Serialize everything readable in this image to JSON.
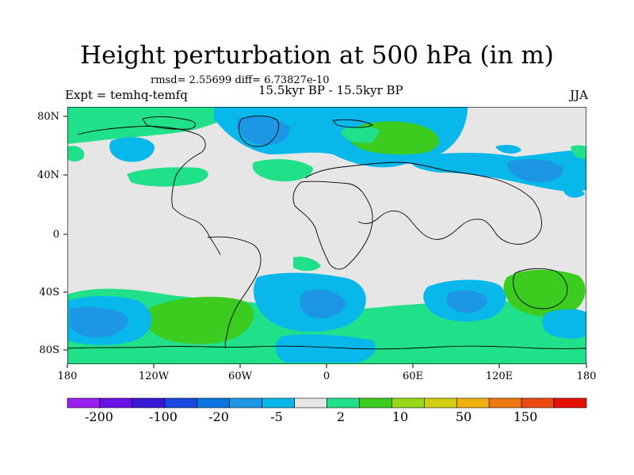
{
  "title": "Height perturbation at 500 hPa (in m)",
  "stats_line": "rmsd= 2.55699 diff= 6.73827e-10",
  "experiment_label": "Expt = temhq-temfq",
  "period_label": "15.5kyr BP - 15.5kyr BP",
  "season_label": "JJA",
  "lat_ticks": [
    "80N",
    "40N",
    "0",
    "40S",
    "80S"
  ],
  "lon_ticks": [
    "180",
    "120W",
    "60W",
    "0",
    "60E",
    "120E",
    "180"
  ],
  "colorbar": {
    "colors": [
      "#9a1ff0",
      "#6a10e8",
      "#3a18d8",
      "#1848e0",
      "#0a74e0",
      "#1e96e6",
      "#08b8ea",
      "#e6e6e6",
      "#20e08a",
      "#3ccc20",
      "#98d818",
      "#d0d010",
      "#f0b010",
      "#f07810",
      "#ec4810",
      "#e81000"
    ],
    "labels": [
      "-200",
      "-100",
      "-20",
      "-5",
      "2",
      "10",
      "50",
      "150"
    ]
  },
  "field_colors": {
    "background": "#e6e6e6",
    "light_green": "#20e08a",
    "green": "#3ccc20",
    "light_blue": "#08b8ea",
    "mid_blue": "#1e96e6"
  }
}
